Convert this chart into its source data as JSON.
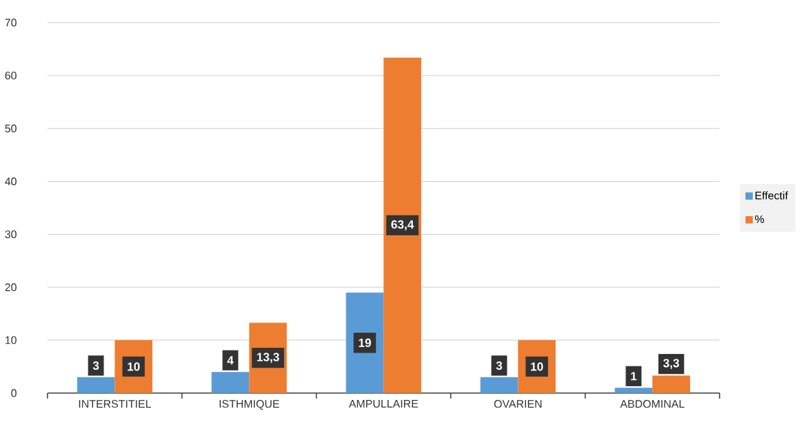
{
  "chart_data": {
    "type": "bar",
    "categories": [
      "INTERSTITIEL",
      "ISTHMIQUE",
      "AMPULLAIRE",
      "OVARIEN",
      "ABDOMINAL"
    ],
    "series": [
      {
        "name": "Effectif",
        "color": "#5b9bd5",
        "values": [
          3,
          4,
          19,
          3,
          1
        ],
        "value_labels": [
          "3",
          "4",
          "19",
          "3",
          "1"
        ]
      },
      {
        "name": "%",
        "color": "#ed7d31",
        "values": [
          10,
          13.3,
          63.4,
          10,
          3.3
        ],
        "value_labels": [
          "10",
          "13,3",
          "63,4",
          "10",
          "3,3"
        ]
      }
    ],
    "ylim": [
      0,
      70
    ],
    "yticks": [
      0,
      10,
      20,
      30,
      40,
      50,
      60,
      70
    ],
    "grid": "y",
    "legend": "right"
  }
}
